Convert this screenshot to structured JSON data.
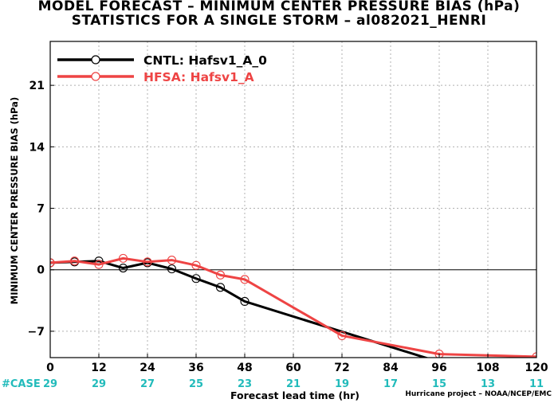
{
  "title_line1": "MODEL FORECAST – MINIMUM CENTER PRESSURE BIAS (hPa)",
  "title_line2": "STATISTICS FOR A SINGLE STORM – al082021_HENRI",
  "footer": "Hurricane project – NOAA/NCEP/EMC",
  "case_label": "#CASE",
  "case_counts": [
    "29",
    "29",
    "27",
    "25",
    "23",
    "21",
    "19",
    "17",
    "15",
    "13",
    "11"
  ],
  "colors": {
    "cntl": "#000000",
    "hfsa": "#ee4444",
    "case_text": "#22bbbb",
    "case_label": "#22bbbb"
  },
  "chart_data": {
    "type": "line",
    "xlabel": "Forecast lead time (hr)",
    "ylabel": "MINIMUM CENTER PRESSURE BIAS (hPa)",
    "xlim": [
      0,
      120
    ],
    "ylim": [
      -10,
      26
    ],
    "xticks": [
      0,
      12,
      24,
      36,
      48,
      60,
      72,
      84,
      96,
      108,
      120
    ],
    "yticks": [
      -7,
      0,
      7,
      14,
      21
    ],
    "grid": true,
    "legend_position": "top-left",
    "series": [
      {
        "name": "CNTL: Hafsv1_A_0",
        "color": "#000000",
        "x": [
          0,
          6,
          12,
          18,
          24,
          30,
          36,
          42,
          48,
          96,
          120
        ],
        "y": [
          0.8,
          0.9,
          1.0,
          0.2,
          0.8,
          0.1,
          -1.0,
          -2.0,
          -3.6,
          -10.5,
          -10.5
        ]
      },
      {
        "name": "HFSA: Hafsv1_A",
        "color": "#ee4444",
        "x": [
          0,
          6,
          12,
          18,
          24,
          30,
          36,
          42,
          48,
          72,
          96,
          120
        ],
        "y": [
          0.8,
          1.0,
          0.6,
          1.3,
          0.9,
          1.1,
          0.5,
          -0.6,
          -1.1,
          -7.5,
          -9.6,
          -9.9
        ]
      }
    ]
  }
}
